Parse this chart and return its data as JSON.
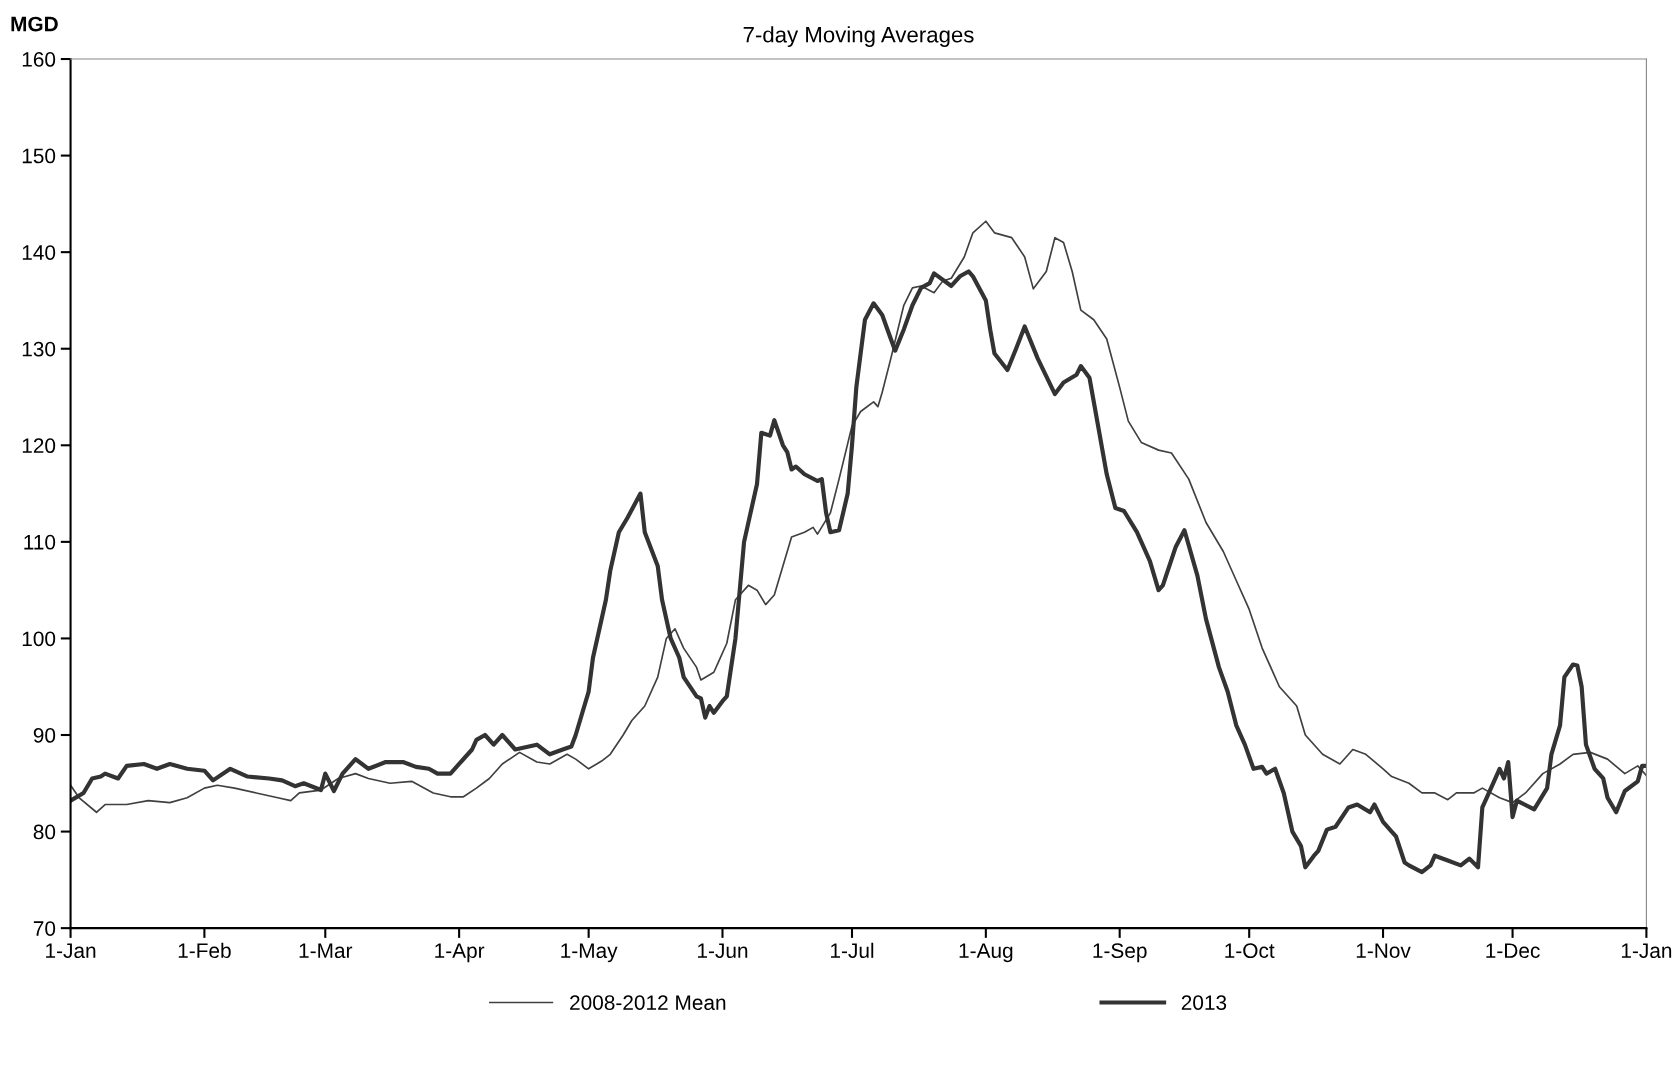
{
  "chart_data": {
    "type": "line",
    "title": "7-day Moving Averages",
    "ylabel": "MGD",
    "xlim": [
      "2013-01-01",
      "2014-01-01"
    ],
    "xticks": [
      {
        "value": "2013-01-01",
        "label": "1-Jan"
      },
      {
        "value": "2013-02-01",
        "label": "1-Feb"
      },
      {
        "value": "2013-03-01",
        "label": "1-Mar"
      },
      {
        "value": "2013-04-01",
        "label": "1-Apr"
      },
      {
        "value": "2013-05-01",
        "label": "1-May"
      },
      {
        "value": "2013-06-01",
        "label": "1-Jun"
      },
      {
        "value": "2013-07-01",
        "label": "1-Jul"
      },
      {
        "value": "2013-08-01",
        "label": "1-Aug"
      },
      {
        "value": "2013-09-01",
        "label": "1-Sep"
      },
      {
        "value": "2013-10-01",
        "label": "1-Oct"
      },
      {
        "value": "2013-11-01",
        "label": "1-Nov"
      },
      {
        "value": "2013-12-01",
        "label": "1-Dec"
      },
      {
        "value": "2014-01-01",
        "label": "1-Jan"
      }
    ],
    "ylim": [
      70,
      160
    ],
    "yticks": [
      70,
      80,
      90,
      100,
      110,
      120,
      130,
      140,
      150,
      160
    ],
    "grid": false,
    "legend": "bottom",
    "marker": "none",
    "line_style": "solid",
    "series": [
      {
        "name": "2008-2012 Mean",
        "color": "#404040",
        "x": [
          "2013-01-01",
          "2013-01-03",
          "2013-01-07",
          "2013-01-09",
          "2013-01-14",
          "2013-01-19",
          "2013-01-24",
          "2013-01-28",
          "2013-02-01",
          "2013-02-04",
          "2013-02-08",
          "2013-02-13",
          "2013-02-18",
          "2013-02-21",
          "2013-02-23",
          "2013-02-28",
          "2013-03-04",
          "2013-03-08",
          "2013-03-11",
          "2013-03-16",
          "2013-03-21",
          "2013-03-26",
          "2013-03-30",
          "2013-04-02",
          "2013-04-05",
          "2013-04-08",
          "2013-04-11",
          "2013-04-15",
          "2013-04-19",
          "2013-04-22",
          "2013-04-26",
          "2013-04-28",
          "2013-05-01",
          "2013-05-04",
          "2013-05-06",
          "2013-05-09",
          "2013-05-11",
          "2013-05-14",
          "2013-05-17",
          "2013-05-19",
          "2013-05-21",
          "2013-05-23",
          "2013-05-26",
          "2013-05-27",
          "2013-05-30",
          "2013-05-31",
          "2013-06-02",
          "2013-06-04",
          "2013-06-07",
          "2013-06-09",
          "2013-06-11",
          "2013-06-13",
          "2013-06-15",
          "2013-06-17",
          "2013-06-20",
          "2013-06-22",
          "2013-06-23",
          "2013-06-26",
          "2013-06-28",
          "2013-07-01",
          "2013-07-03",
          "2013-07-06",
          "2013-07-07",
          "2013-07-08",
          "2013-07-10",
          "2013-07-13",
          "2013-07-15",
          "2013-07-17",
          "2013-07-20",
          "2013-07-22",
          "2013-07-24",
          "2013-07-27",
          "2013-07-29",
          "2013-08-01",
          "2013-08-03",
          "2013-08-07",
          "2013-08-10",
          "2013-08-12",
          "2013-08-15",
          "2013-08-17",
          "2013-08-19",
          "2013-08-21",
          "2013-08-23",
          "2013-08-26",
          "2013-08-29",
          "2013-09-01",
          "2013-09-03",
          "2013-09-06",
          "2013-09-10",
          "2013-09-13",
          "2013-09-17",
          "2013-09-21",
          "2013-09-25",
          "2013-09-28",
          "2013-10-01",
          "2013-10-04",
          "2013-10-08",
          "2013-10-12",
          "2013-10-14",
          "2013-10-18",
          "2013-10-22",
          "2013-10-25",
          "2013-10-28",
          "2013-11-01",
          "2013-11-03",
          "2013-11-07",
          "2013-11-10",
          "2013-11-13",
          "2013-11-16",
          "2013-11-18",
          "2013-11-22",
          "2013-11-24",
          "2013-11-28",
          "2013-12-01",
          "2013-12-04",
          "2013-12-08",
          "2013-12-12",
          "2013-12-15",
          "2013-12-19",
          "2013-12-23",
          "2013-12-27",
          "2013-12-30",
          "2014-01-01"
        ],
        "values": [
          84.8,
          83.5,
          82,
          82.8,
          82.8,
          83.2,
          83,
          83.5,
          84.5,
          84.8,
          84.5,
          84,
          83.5,
          83.2,
          84,
          84.3,
          85.5,
          86,
          85.5,
          85,
          85.2,
          84,
          83.6,
          83.6,
          84.5,
          85.5,
          87,
          88.2,
          87.2,
          87,
          88,
          87.5,
          86.5,
          87.3,
          88,
          90,
          91.5,
          93,
          96,
          100,
          101,
          99,
          97,
          95.7,
          96.5,
          97.5,
          99.5,
          104,
          105.5,
          105,
          103.5,
          104.5,
          107.5,
          110.5,
          111,
          111.5,
          110.8,
          113,
          116.5,
          122,
          123.5,
          124.5,
          124,
          125.5,
          129,
          134.5,
          136.3,
          136.5,
          135.8,
          137,
          137.3,
          139.5,
          142,
          143.2,
          142,
          141.5,
          139.5,
          136.2,
          138,
          141.5,
          141,
          138,
          134,
          133,
          131,
          126,
          122.5,
          120.3,
          119.5,
          119.2,
          116.5,
          112,
          109,
          106,
          103,
          99,
          95,
          93,
          90,
          88,
          87,
          88.5,
          88,
          86.5,
          85.7,
          85,
          84,
          84,
          83.3,
          84,
          84,
          84.5,
          83.5,
          83,
          84,
          86,
          87,
          88,
          88.2,
          87.5,
          86,
          86.8,
          85.8
        ]
      },
      {
        "name": "2013",
        "color": "#333333",
        "x": [
          "2013-01-01",
          "2013-01-04",
          "2013-01-06",
          "2013-01-08",
          "2013-01-09",
          "2013-01-12",
          "2013-01-14",
          "2013-01-18",
          "2013-01-21",
          "2013-01-24",
          "2013-01-28",
          "2013-02-01",
          "2013-02-03",
          "2013-02-07",
          "2013-02-11",
          "2013-02-16",
          "2013-02-19",
          "2013-02-22",
          "2013-02-24",
          "2013-02-28",
          "2013-03-01",
          "2013-03-03",
          "2013-03-05",
          "2013-03-08",
          "2013-03-11",
          "2013-03-15",
          "2013-03-19",
          "2013-03-22",
          "2013-03-25",
          "2013-03-27",
          "2013-03-30",
          "2013-04-01",
          "2013-04-04",
          "2013-04-05",
          "2013-04-07",
          "2013-04-09",
          "2013-04-11",
          "2013-04-14",
          "2013-04-19",
          "2013-04-22",
          "2013-04-25",
          "2013-04-27",
          "2013-04-28",
          "2013-04-29",
          "2013-05-01",
          "2013-05-02",
          "2013-05-03",
          "2013-05-05",
          "2013-05-06",
          "2013-05-08",
          "2013-05-10",
          "2013-05-13",
          "2013-05-14",
          "2013-05-17",
          "2013-05-18",
          "2013-05-20",
          "2013-05-22",
          "2013-05-23",
          "2013-05-26",
          "2013-05-27",
          "2013-05-28",
          "2013-05-29",
          "2013-05-30",
          "2013-06-01",
          "2013-06-02",
          "2013-06-04",
          "2013-06-06",
          "2013-06-09",
          "2013-06-10",
          "2013-06-12",
          "2013-06-13",
          "2013-06-15",
          "2013-06-16",
          "2013-06-17",
          "2013-06-18",
          "2013-06-20",
          "2013-06-23",
          "2013-06-24",
          "2013-06-25",
          "2013-06-26",
          "2013-06-28",
          "2013-06-30",
          "2013-07-01",
          "2013-07-02",
          "2013-07-04",
          "2013-07-06",
          "2013-07-08",
          "2013-07-10",
          "2013-07-11",
          "2013-07-13",
          "2013-07-15",
          "2013-07-17",
          "2013-07-19",
          "2013-07-20",
          "2013-07-24",
          "2013-07-26",
          "2013-07-28",
          "2013-07-29",
          "2013-08-01",
          "2013-08-02",
          "2013-08-03",
          "2013-08-06",
          "2013-08-08",
          "2013-08-10",
          "2013-08-13",
          "2013-08-17",
          "2013-08-19",
          "2013-08-22",
          "2013-08-23",
          "2013-08-25",
          "2013-08-27",
          "2013-08-29",
          "2013-08-31",
          "2013-09-02",
          "2013-09-05",
          "2013-09-08",
          "2013-09-10",
          "2013-09-11",
          "2013-09-14",
          "2013-09-16",
          "2013-09-19",
          "2013-09-21",
          "2013-09-24",
          "2013-09-26",
          "2013-09-28",
          "2013-09-30",
          "2013-10-02",
          "2013-10-04",
          "2013-10-05",
          "2013-10-07",
          "2013-10-09",
          "2013-10-11",
          "2013-10-13",
          "2013-10-14",
          "2013-10-16",
          "2013-10-17",
          "2013-10-19",
          "2013-10-21",
          "2013-10-24",
          "2013-10-26",
          "2013-10-29",
          "2013-10-30",
          "2013-11-01",
          "2013-11-03",
          "2013-11-04",
          "2013-11-06",
          "2013-11-07",
          "2013-11-10",
          "2013-11-12",
          "2013-11-13",
          "2013-11-16",
          "2013-11-19",
          "2013-11-21",
          "2013-11-23",
          "2013-11-24",
          "2013-11-25",
          "2013-11-28",
          "2013-11-29",
          "2013-11-30",
          "2013-12-01",
          "2013-12-02",
          "2013-12-06",
          "2013-12-09",
          "2013-12-10",
          "2013-12-12",
          "2013-12-13",
          "2013-12-15",
          "2013-12-16",
          "2013-12-17",
          "2013-12-18",
          "2013-12-20",
          "2013-12-22",
          "2013-12-23",
          "2013-12-25",
          "2013-12-27",
          "2013-12-30",
          "2013-12-31",
          "2014-01-01"
        ],
        "values": [
          83.2,
          84,
          85.5,
          85.7,
          86,
          85.5,
          86.8,
          87,
          86.5,
          87,
          86.5,
          86.3,
          85.3,
          86.5,
          85.7,
          85.5,
          85.3,
          84.7,
          85,
          84.3,
          86,
          84.2,
          86,
          87.5,
          86.5,
          87.2,
          87.2,
          86.7,
          86.5,
          86,
          86,
          87,
          88.5,
          89.5,
          90,
          89,
          90,
          88.5,
          89,
          88,
          88.5,
          88.8,
          90,
          91.5,
          94.5,
          98,
          100,
          104,
          107,
          111,
          112.5,
          115,
          111,
          107.5,
          104,
          100,
          98,
          96,
          94,
          93.8,
          91.8,
          93,
          92.3,
          93.5,
          94,
          100,
          110,
          116,
          121.3,
          121,
          122.6,
          120,
          119.3,
          117.5,
          117.8,
          117,
          116.3,
          116.5,
          113,
          111,
          111.2,
          115,
          120,
          126,
          133,
          134.7,
          133.5,
          131,
          129.8,
          132,
          134.5,
          136.3,
          136.8,
          137.8,
          136.5,
          137.5,
          138,
          137.5,
          135,
          132,
          129.5,
          127.8,
          130,
          132.3,
          129,
          125.3,
          126.5,
          127.3,
          128.2,
          127,
          122,
          117,
          113.5,
          113.2,
          111,
          108,
          105,
          105.5,
          109.5,
          111.2,
          106.5,
          102,
          97,
          94.5,
          91,
          89,
          86.5,
          86.7,
          86,
          86.5,
          84,
          80,
          78.5,
          76.3,
          77.5,
          78,
          80.2,
          80.5,
          82.5,
          82.8,
          82,
          82.8,
          81,
          80,
          79.5,
          76.8,
          76.5,
          75.8,
          76.5,
          77.5,
          77,
          76.5,
          77.2,
          76.3,
          82.5,
          83.5,
          86.5,
          85.5,
          87.2,
          81.5,
          83.2,
          82.3,
          84.5,
          88,
          91,
          96,
          97.3,
          97.2,
          95,
          89,
          86.5,
          85.5,
          83.5,
          82,
          84.2,
          85.2,
          86.8,
          86.8
        ]
      }
    ]
  }
}
